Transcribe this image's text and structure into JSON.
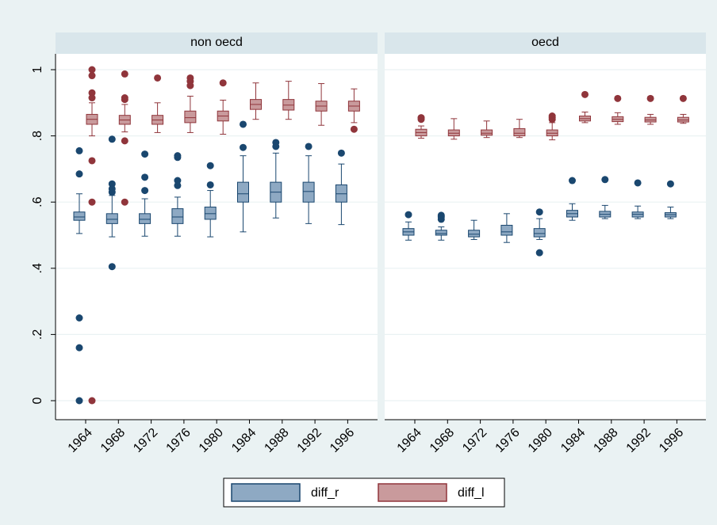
{
  "chart_data": {
    "type": "box",
    "panels": [
      "non oecd",
      "oecd"
    ],
    "categories": [
      "1964",
      "1968",
      "1972",
      "1976",
      "1980",
      "1984",
      "1988",
      "1992",
      "1996"
    ],
    "ylim": [
      0,
      1
    ],
    "yticks": [
      0,
      {
        "value": 0.2,
        "label": ".2"
      },
      {
        "value": 0.4,
        "label": ".4"
      },
      {
        "value": 0.6,
        "label": ".6"
      },
      {
        "value": 0.8,
        "label": ".8"
      },
      1
    ],
    "grid": true,
    "series": [
      {
        "name": "diff_r",
        "color": "#8ea9c3",
        "edge_color": "#1a476f",
        "values": [
          [
            {
              "min": 0.505,
              "q1": 0.545,
              "median": 0.555,
              "q3": 0.57,
              "max": 0.625,
              "outliers": [
                0.755,
                0.685,
                0.25,
                0.16,
                0
              ]
            },
            {
              "min": 0.495,
              "q1": 0.535,
              "median": 0.548,
              "q3": 0.565,
              "max": 0.62,
              "outliers": [
                0.79,
                0.655,
                0.64,
                0.63,
                0.405
              ]
            },
            {
              "min": 0.497,
              "q1": 0.535,
              "median": 0.548,
              "q3": 0.565,
              "max": 0.61,
              "outliers": [
                0.745,
                0.675,
                0.635
              ]
            },
            {
              "min": 0.497,
              "q1": 0.535,
              "median": 0.555,
              "q3": 0.58,
              "max": 0.615,
              "outliers": [
                0.74,
                0.735,
                0.665,
                0.65
              ]
            },
            {
              "min": 0.495,
              "q1": 0.548,
              "median": 0.565,
              "q3": 0.585,
              "max": 0.635,
              "outliers": [
                0.71,
                0.652
              ]
            },
            {
              "min": 0.51,
              "q1": 0.6,
              "median": 0.625,
              "q3": 0.66,
              "max": 0.74,
              "outliers": [
                0.835,
                0.765
              ]
            },
            {
              "min": 0.552,
              "q1": 0.6,
              "median": 0.63,
              "q3": 0.66,
              "max": 0.748,
              "outliers": [
                0.78,
                0.768
              ]
            },
            {
              "min": 0.535,
              "q1": 0.6,
              "median": 0.632,
              "q3": 0.66,
              "max": 0.74,
              "outliers": [
                0.768
              ]
            },
            {
              "min": 0.532,
              "q1": 0.6,
              "median": 0.625,
              "q3": 0.652,
              "max": 0.715,
              "outliers": [
                0.748
              ]
            }
          ],
          [
            {
              "min": 0.485,
              "q1": 0.5,
              "median": 0.51,
              "q3": 0.52,
              "max": 0.54,
              "outliers": [
                0.562
              ]
            },
            {
              "min": 0.485,
              "q1": 0.5,
              "median": 0.505,
              "q3": 0.515,
              "max": 0.525,
              "outliers": [
                0.56,
                0.555,
                0.548
              ]
            },
            {
              "min": 0.487,
              "q1": 0.495,
              "median": 0.503,
              "q3": 0.515,
              "max": 0.545,
              "outliers": []
            },
            {
              "min": 0.478,
              "q1": 0.5,
              "median": 0.51,
              "q3": 0.53,
              "max": 0.565,
              "outliers": []
            },
            {
              "min": 0.487,
              "q1": 0.495,
              "median": 0.505,
              "q3": 0.52,
              "max": 0.55,
              "outliers": [
                0.57,
                0.447
              ]
            },
            {
              "min": 0.545,
              "q1": 0.555,
              "median": 0.565,
              "q3": 0.575,
              "max": 0.595,
              "outliers": [
                0.665
              ]
            },
            {
              "min": 0.55,
              "q1": 0.555,
              "median": 0.563,
              "q3": 0.572,
              "max": 0.59,
              "outliers": [
                0.668
              ]
            },
            {
              "min": 0.55,
              "q1": 0.555,
              "median": 0.563,
              "q3": 0.57,
              "max": 0.588,
              "outliers": [
                0.658
              ]
            },
            {
              "min": 0.55,
              "q1": 0.555,
              "median": 0.562,
              "q3": 0.568,
              "max": 0.585,
              "outliers": [
                0.655
              ]
            }
          ]
        ]
      },
      {
        "name": "diff_l",
        "color": "#c99a9c",
        "edge_color": "#90353b",
        "values": [
          [
            {
              "min": 0.8,
              "q1": 0.835,
              "median": 0.85,
              "q3": 0.865,
              "max": 0.9,
              "outliers": [
                1,
                0.982,
                0.93,
                0.915,
                0.725,
                0.6,
                0
              ]
            },
            {
              "min": 0.812,
              "q1": 0.835,
              "median": 0.848,
              "q3": 0.862,
              "max": 0.895,
              "outliers": [
                0.987,
                0.915,
                0.91,
                0.785,
                0.6
              ]
            },
            {
              "min": 0.81,
              "q1": 0.835,
              "median": 0.848,
              "q3": 0.862,
              "max": 0.9,
              "outliers": [
                0.975
              ]
            },
            {
              "min": 0.81,
              "q1": 0.84,
              "median": 0.855,
              "q3": 0.875,
              "max": 0.92,
              "outliers": [
                0.975,
                0.965,
                0.952
              ]
            },
            {
              "min": 0.805,
              "q1": 0.845,
              "median": 0.86,
              "q3": 0.875,
              "max": 0.908,
              "outliers": [
                0.96
              ]
            },
            {
              "min": 0.85,
              "q1": 0.88,
              "median": 0.895,
              "q3": 0.91,
              "max": 0.96,
              "outliers": []
            },
            {
              "min": 0.85,
              "q1": 0.878,
              "median": 0.893,
              "q3": 0.91,
              "max": 0.965,
              "outliers": []
            },
            {
              "min": 0.832,
              "q1": 0.875,
              "median": 0.89,
              "q3": 0.905,
              "max": 0.958,
              "outliers": []
            },
            {
              "min": 0.84,
              "q1": 0.875,
              "median": 0.89,
              "q3": 0.905,
              "max": 0.942,
              "outliers": [
                0.82
              ]
            }
          ],
          [
            {
              "min": 0.793,
              "q1": 0.8,
              "median": 0.81,
              "q3": 0.82,
              "max": 0.83,
              "outliers": [
                0.855,
                0.85
              ]
            },
            {
              "min": 0.79,
              "q1": 0.8,
              "median": 0.808,
              "q3": 0.818,
              "max": 0.852,
              "outliers": []
            },
            {
              "min": 0.795,
              "q1": 0.802,
              "median": 0.808,
              "q3": 0.818,
              "max": 0.845,
              "outliers": []
            },
            {
              "min": 0.795,
              "q1": 0.8,
              "median": 0.808,
              "q3": 0.822,
              "max": 0.85,
              "outliers": []
            },
            {
              "min": 0.788,
              "q1": 0.8,
              "median": 0.808,
              "q3": 0.818,
              "max": 0.84,
              "outliers": [
                0.86,
                0.855,
                0.85
              ]
            },
            {
              "min": 0.84,
              "q1": 0.845,
              "median": 0.852,
              "q3": 0.86,
              "max": 0.872,
              "outliers": [
                0.925
              ]
            },
            {
              "min": 0.835,
              "q1": 0.843,
              "median": 0.85,
              "q3": 0.858,
              "max": 0.87,
              "outliers": [
                0.913
              ]
            },
            {
              "min": 0.835,
              "q1": 0.842,
              "median": 0.848,
              "q3": 0.856,
              "max": 0.865,
              "outliers": [
                0.913
              ]
            },
            {
              "min": 0.838,
              "q1": 0.842,
              "median": 0.848,
              "q3": 0.856,
              "max": 0.865,
              "outliers": [
                0.913
              ]
            }
          ]
        ]
      }
    ]
  }
}
